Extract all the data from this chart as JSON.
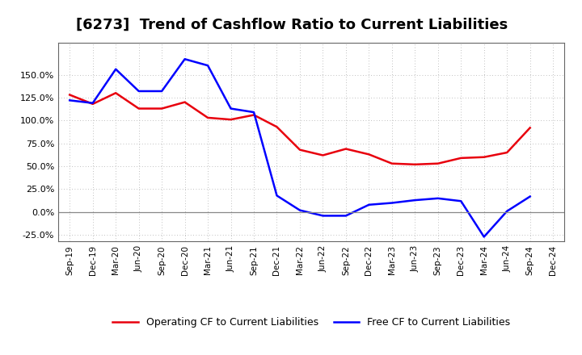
{
  "title": "[6273]  Trend of Cashflow Ratio to Current Liabilities",
  "x_labels": [
    "Sep-19",
    "Dec-19",
    "Mar-20",
    "Jun-20",
    "Sep-20",
    "Dec-20",
    "Mar-21",
    "Jun-21",
    "Sep-21",
    "Dec-21",
    "Mar-22",
    "Jun-22",
    "Sep-22",
    "Dec-22",
    "Mar-23",
    "Jun-23",
    "Sep-23",
    "Dec-23",
    "Mar-24",
    "Jun-24",
    "Sep-24",
    "Dec-24"
  ],
  "operating_cf": [
    128,
    118,
    130,
    113,
    113,
    120,
    103,
    101,
    106,
    93,
    68,
    62,
    69,
    63,
    53,
    52,
    53,
    59,
    60,
    65,
    92,
    null
  ],
  "free_cf": [
    122,
    119,
    156,
    132,
    132,
    167,
    160,
    113,
    109,
    18,
    2,
    -4,
    -4,
    8,
    10,
    13,
    15,
    12,
    -27,
    1,
    17,
    null
  ],
  "operating_color": "#e8000d",
  "free_color": "#0000ff",
  "background_color": "#ffffff",
  "grid_color": "#aaaaaa",
  "ylim": [
    -32,
    185
  ],
  "yticks": [
    -25,
    0,
    25,
    50,
    75,
    100,
    125,
    150
  ],
  "legend_operating": "Operating CF to Current Liabilities",
  "legend_free": "Free CF to Current Liabilities",
  "title_fontsize": 13,
  "line_width": 1.8
}
